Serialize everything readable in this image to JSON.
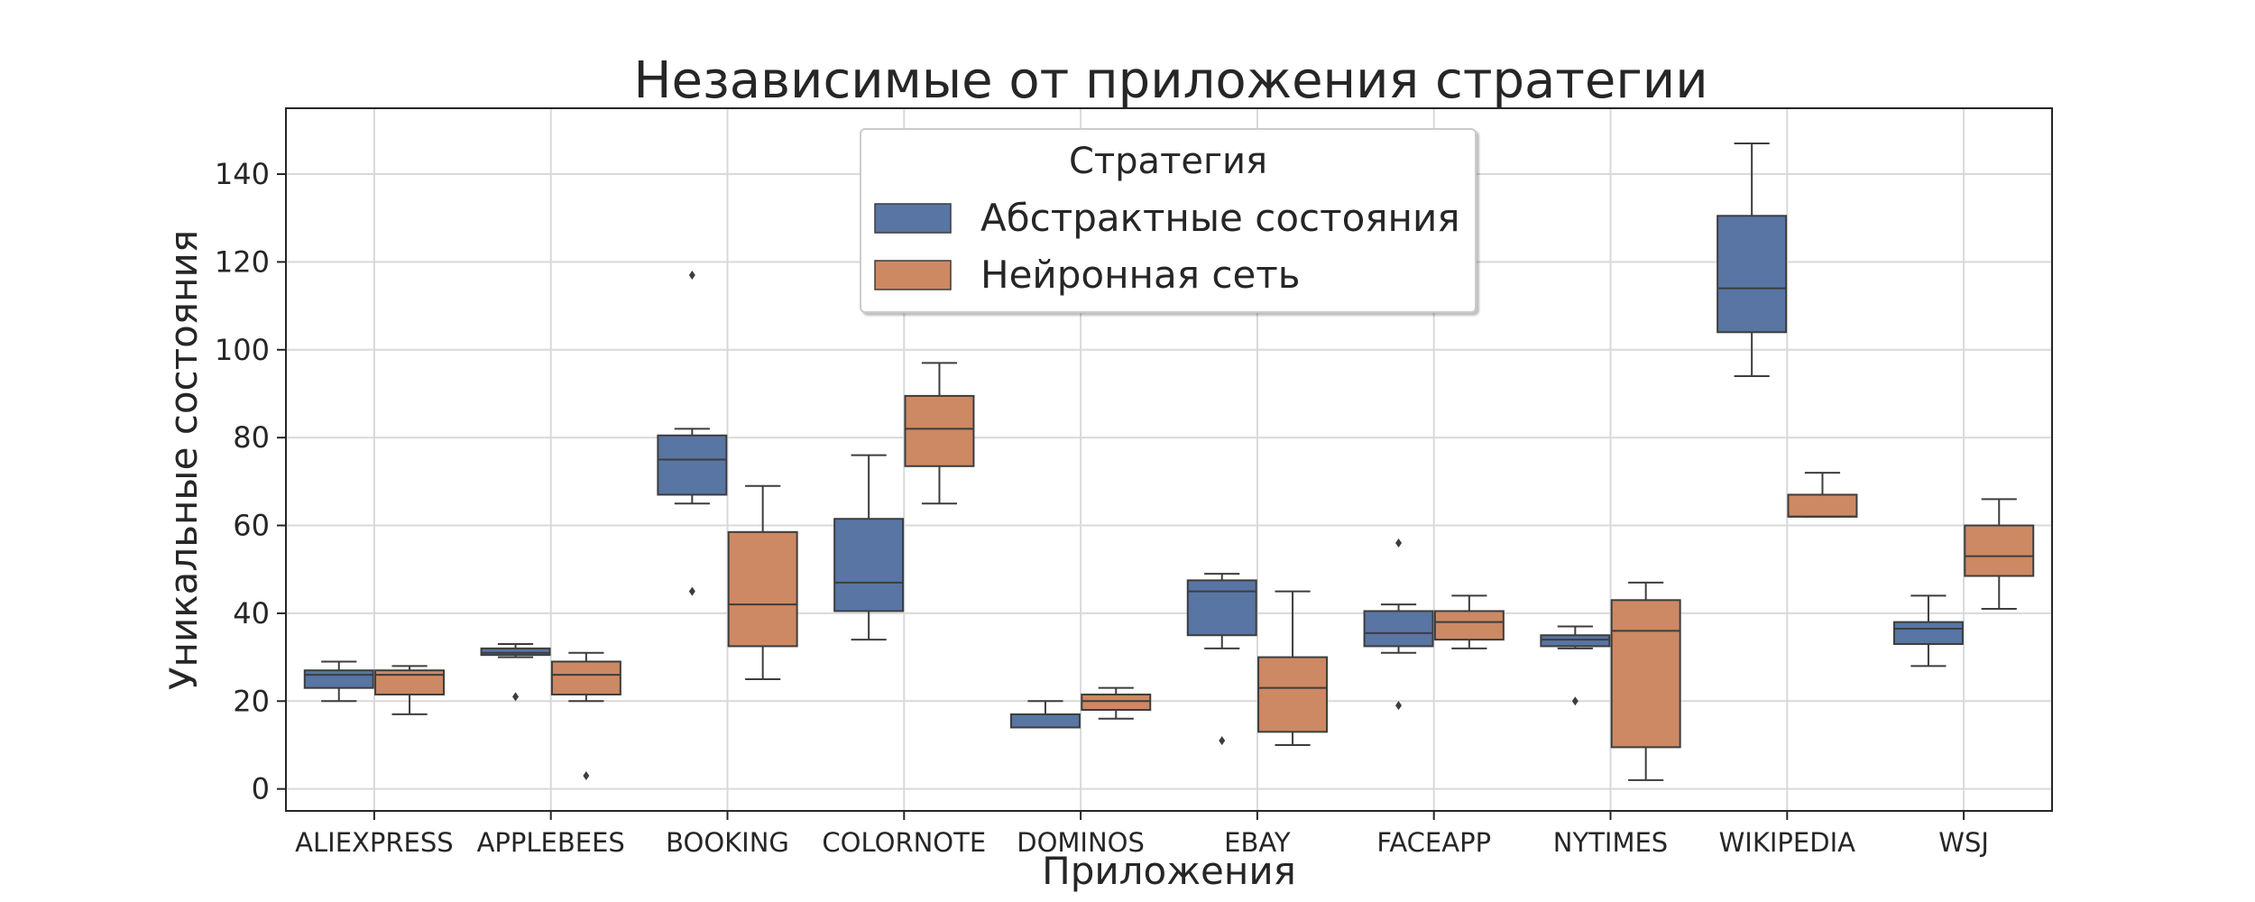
{
  "chart_data": {
    "type": "box",
    "title": "Независимые от приложения стратегии",
    "xlabel": "Приложения",
    "ylabel": "Уникальные состояния",
    "ylim": [
      -5,
      155
    ],
    "yticks": [
      0,
      20,
      40,
      60,
      80,
      100,
      120,
      140
    ],
    "grid": true,
    "legend": {
      "title": "Стратегия",
      "placement": "top-center"
    },
    "categories": [
      "ALIEXPRESS",
      "APPLEBEES",
      "BOOKING",
      "COLORNOTE",
      "DOMINOS",
      "EBAY",
      "FACEAPP",
      "NYTIMES",
      "WIKIPEDIA",
      "WSJ"
    ],
    "series": [
      {
        "name": "Абстрактные состояния",
        "color": "#5875a4",
        "boxes": [
          {
            "whislo": 20,
            "q1": 23,
            "med": 26,
            "q3": 27,
            "whishi": 29,
            "fliers": []
          },
          {
            "whislo": 30,
            "q1": 30.5,
            "med": 31,
            "q3": 32,
            "whishi": 33,
            "fliers": [
              21
            ]
          },
          {
            "whislo": 65,
            "q1": 67,
            "med": 75,
            "q3": 80.5,
            "whishi": 82,
            "fliers": [
              117,
              45
            ]
          },
          {
            "whislo": 34,
            "q1": 40.5,
            "med": 47,
            "q3": 61.5,
            "whishi": 76,
            "fliers": []
          },
          {
            "whislo": 14,
            "q1": 14,
            "med": 14,
            "q3": 17,
            "whishi": 20,
            "fliers": []
          },
          {
            "whislo": 32,
            "q1": 35,
            "med": 45,
            "q3": 47.5,
            "whishi": 49,
            "fliers": [
              11
            ]
          },
          {
            "whislo": 31,
            "q1": 32.5,
            "med": 35.5,
            "q3": 40.5,
            "whishi": 42,
            "fliers": [
              56,
              19
            ]
          },
          {
            "whislo": 32,
            "q1": 32.5,
            "med": 34,
            "q3": 35,
            "whishi": 37,
            "fliers": [
              20
            ]
          },
          {
            "whislo": 94,
            "q1": 104,
            "med": 114,
            "q3": 130.5,
            "whishi": 147,
            "fliers": []
          },
          {
            "whislo": 28,
            "q1": 33,
            "med": 36.5,
            "q3": 38,
            "whishi": 44,
            "fliers": []
          }
        ]
      },
      {
        "name": "Нейронная сеть",
        "color": "#cc8963",
        "boxes": [
          {
            "whislo": 17,
            "q1": 21.5,
            "med": 26,
            "q3": 27,
            "whishi": 28,
            "fliers": []
          },
          {
            "whislo": 20,
            "q1": 21.5,
            "med": 26,
            "q3": 29,
            "whishi": 31,
            "fliers": [
              3
            ]
          },
          {
            "whislo": 25,
            "q1": 32.5,
            "med": 42,
            "q3": 58.5,
            "whishi": 69,
            "fliers": []
          },
          {
            "whislo": 65,
            "q1": 73.5,
            "med": 82,
            "q3": 89.5,
            "whishi": 97,
            "fliers": []
          },
          {
            "whislo": 16,
            "q1": 18,
            "med": 20,
            "q3": 21.5,
            "whishi": 23,
            "fliers": []
          },
          {
            "whislo": 10,
            "q1": 13,
            "med": 23,
            "q3": 30,
            "whishi": 45,
            "fliers": []
          },
          {
            "whislo": 32,
            "q1": 34,
            "med": 38,
            "q3": 40.5,
            "whishi": 44,
            "fliers": []
          },
          {
            "whislo": 2,
            "q1": 9.5,
            "med": 36,
            "q3": 43,
            "whishi": 47,
            "fliers": []
          },
          {
            "whislo": 62,
            "q1": 62,
            "med": 62,
            "q3": 67,
            "whishi": 72,
            "fliers": []
          },
          {
            "whislo": 41,
            "q1": 48.5,
            "med": 53,
            "q3": 60,
            "whishi": 66,
            "fliers": []
          }
        ]
      }
    ]
  }
}
